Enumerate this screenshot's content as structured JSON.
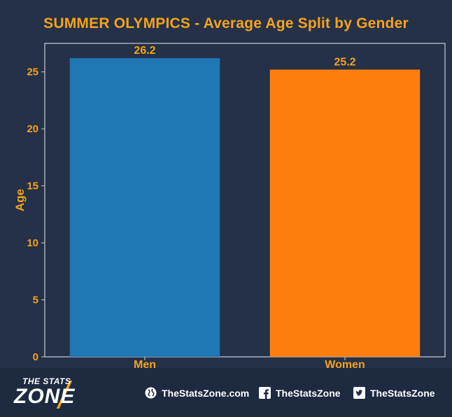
{
  "chart_data": {
    "type": "bar",
    "title": "SUMMER OLYMPICS - Average Age Split by Gender",
    "categories": [
      "Men",
      "Women"
    ],
    "values": [
      26.2,
      25.2
    ],
    "value_labels": [
      "26.2",
      "25.2"
    ],
    "colors": [
      "#1f77b4",
      "#ff7f0e"
    ],
    "xlabel": "",
    "ylabel": "Age",
    "ylim": [
      0,
      27.5
    ],
    "yticks": [
      0,
      5,
      10,
      15,
      20,
      25
    ],
    "grid": false,
    "legend": "none"
  },
  "footer": {
    "brand_top": "THE STATS",
    "brand_main": "ZONE",
    "website": "TheStatsZone.com",
    "facebook": "TheStatsZone",
    "twitter": "TheStatsZone",
    "website_icon": "globe-icon",
    "facebook_icon": "facebook-icon",
    "twitter_icon": "twitter-icon"
  }
}
